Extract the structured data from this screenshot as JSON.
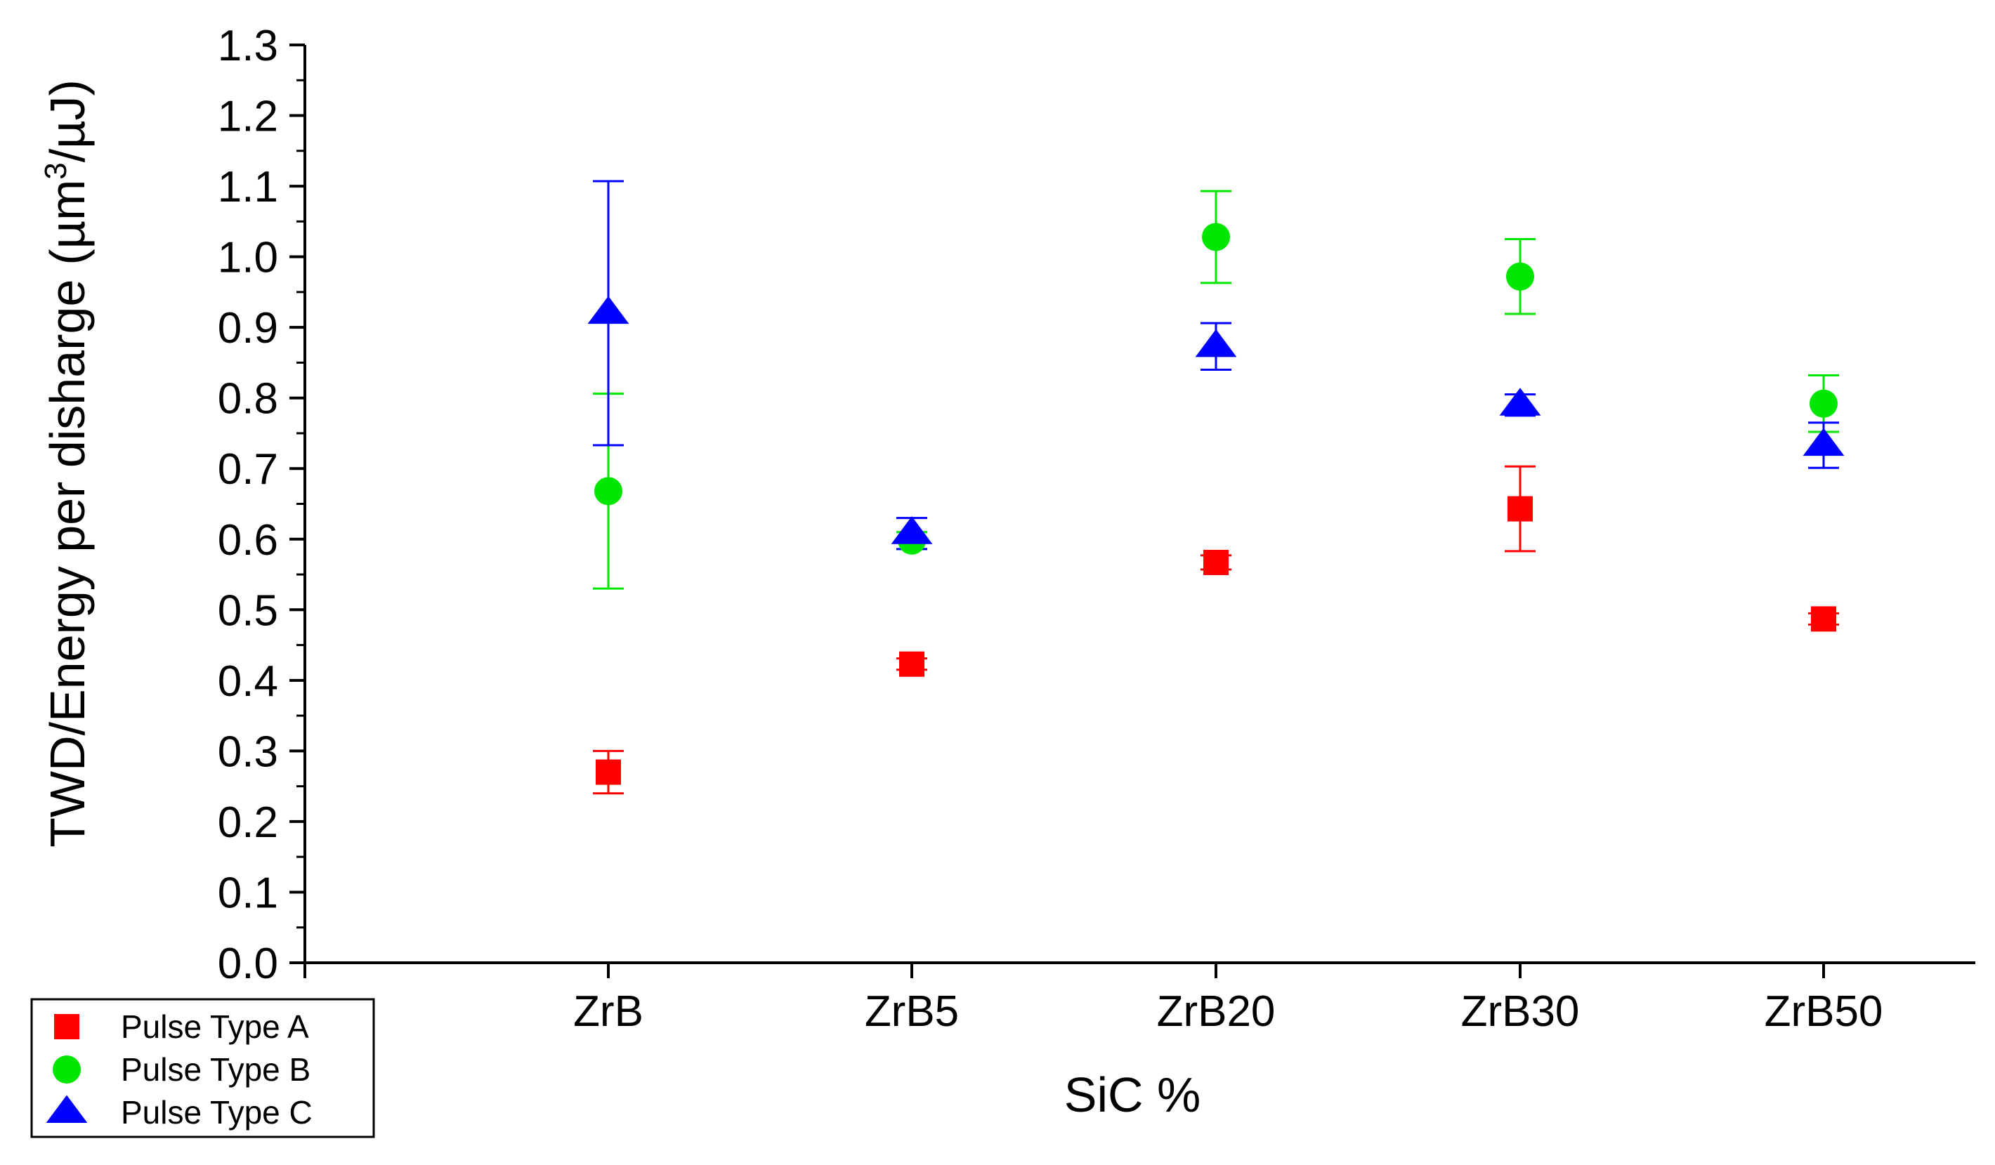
{
  "chart_data": {
    "type": "scatter",
    "title": "",
    "xlabel": "SiC %",
    "ylabel": "TWD/Energy per disharge",
    "ylabel_unit": {
      "prefix": "(µm",
      "superscript": "3",
      "suffix": "/µJ)"
    },
    "categories": [
      "ZrB",
      "ZrB5",
      "ZrB20",
      "ZrB30",
      "ZrB50"
    ],
    "ylim": [
      0.0,
      1.3
    ],
    "yticks": [
      "0.0",
      "0.1",
      "0.2",
      "0.3",
      "0.4",
      "0.5",
      "0.6",
      "0.7",
      "0.8",
      "0.9",
      "1.0",
      "1.1",
      "1.2",
      "1.3"
    ],
    "grid": false,
    "legend_position": "bottom-left",
    "series": [
      {
        "name": "Pulse Type A",
        "marker": "square",
        "color": "#ff0000",
        "values": [
          0.27,
          0.423,
          0.567,
          0.643,
          0.487
        ],
        "errors": [
          0.03,
          0.008,
          0.01,
          0.06,
          0.008
        ]
      },
      {
        "name": "Pulse Type B",
        "marker": "circle",
        "color": "#00e600",
        "values": [
          0.668,
          0.598,
          1.028,
          0.972,
          0.792
        ],
        "errors": [
          0.138,
          0.012,
          0.065,
          0.053,
          0.04
        ]
      },
      {
        "name": "Pulse Type C",
        "marker": "triangle",
        "color": "#0000ff",
        "values": [
          0.92,
          0.608,
          0.873,
          0.79,
          0.733
        ],
        "errors": [
          0.187,
          0.022,
          0.033,
          0.015,
          0.032
        ]
      }
    ]
  }
}
